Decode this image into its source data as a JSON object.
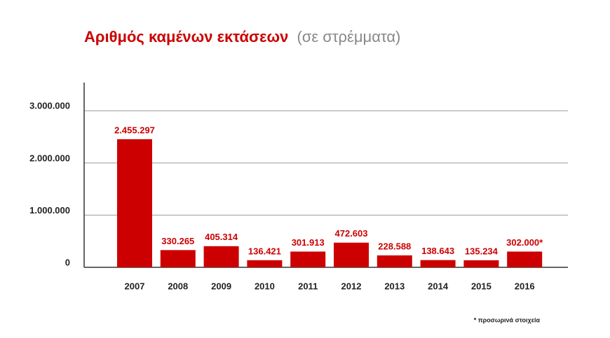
{
  "chart_data": {
    "type": "bar",
    "title": "Αριθμός καμένων εκτάσεων",
    "subtitle": "(σε στρέμματα)",
    "note": "* προσωρινά στοιχεία",
    "categories": [
      "2007",
      "2008",
      "2009",
      "2010",
      "2011",
      "2012",
      "2013",
      "2014",
      "2015",
      "2016"
    ],
    "values": [
      2455297,
      330265,
      405314,
      136421,
      301913,
      472603,
      228588,
      138643,
      135234,
      302000
    ],
    "value_labels": [
      "2.455.297",
      "330.265",
      "405.314",
      "136.421",
      "301.913",
      "472.603",
      "228.588",
      "138.643",
      "135.234",
      "302.000*"
    ],
    "color": "#cc0000",
    "ylim": [
      0,
      3500000
    ],
    "yticks": [
      0,
      {
        "value": 1000000,
        "label": "1.000.000"
      },
      {
        "value": 2000000,
        "label": "2.000.000"
      },
      {
        "value": 3000000,
        "label": "3.000.000"
      }
    ],
    "grid": true
  }
}
